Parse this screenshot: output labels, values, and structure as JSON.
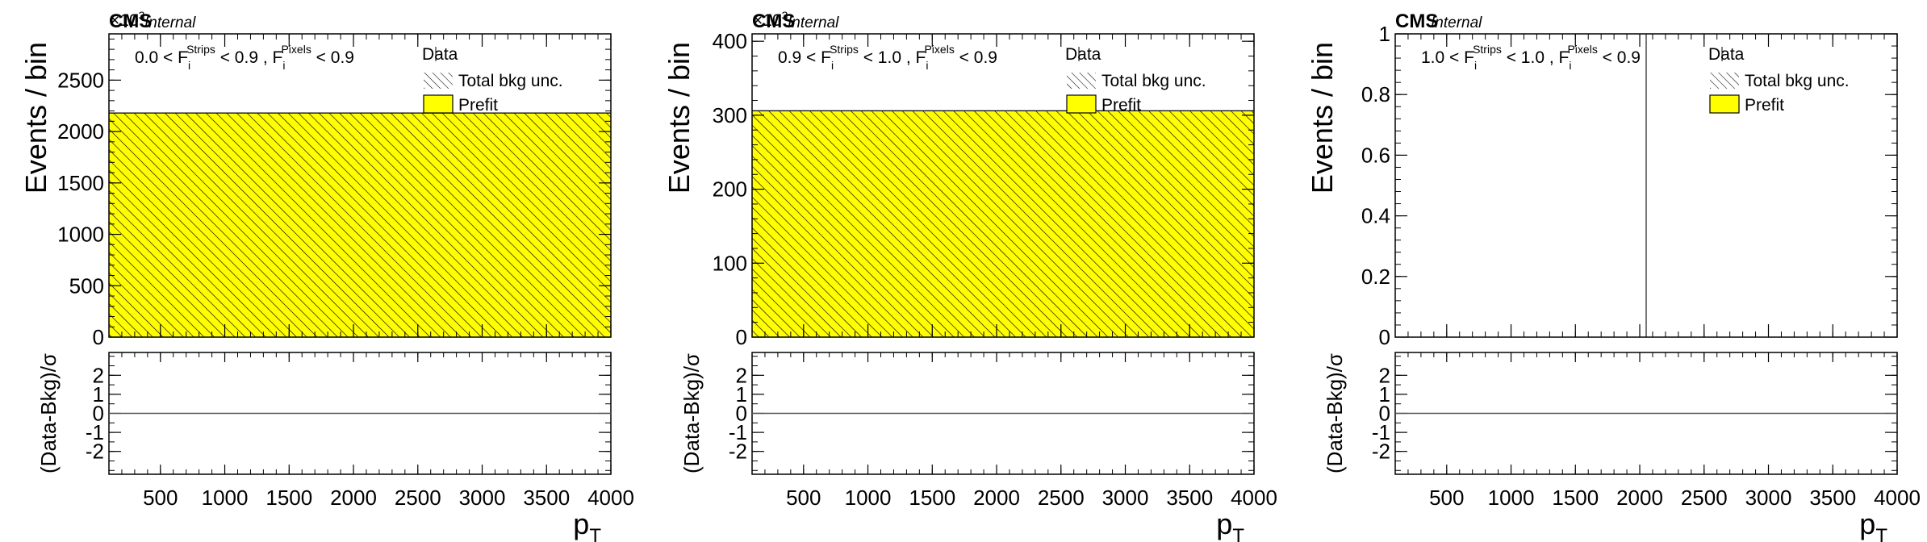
{
  "colors": {
    "prefit_fill": "#ffff00",
    "hatch": "#000000",
    "axis": "#000000",
    "data_line": "#777777"
  },
  "chart_data": [
    {
      "type": "histogram",
      "experiment": "CMS",
      "status": "Internal",
      "ylabel": "Events / bin",
      "ratio_ylabel": "(Data-Bkg)/σ",
      "xlabel": "p",
      "xlabel_sub": "T",
      "exponent_label": "×10",
      "exponent_power": "3",
      "region": {
        "a": "0.0 < F",
        "b": " < 0.9 , F",
        "c": " < 0.9",
        "sub1": "i",
        "sup1": "Strips",
        "sub2": "i",
        "sup2": "Pixels"
      },
      "legend": {
        "data": "Data",
        "unc": "Total bkg unc.",
        "prefit": "Prefit"
      },
      "xlim": [
        100,
        4000
      ],
      "ylim": [
        0,
        2950
      ],
      "ratio_ylim": [
        -3.2,
        3.2
      ],
      "xticks": [
        500,
        1000,
        1500,
        2000,
        2500,
        3000,
        3500,
        4000
      ],
      "yticks": [
        0,
        500,
        1000,
        1500,
        2000,
        2500
      ],
      "ratio_yticks": [
        2,
        1,
        0,
        -1,
        -2
      ],
      "bins": [
        {
          "low": 100,
          "high": 4000,
          "prefit": 2180
        }
      ],
      "data_line_x": null
    },
    {
      "type": "histogram",
      "experiment": "CMS",
      "status": "Internal",
      "ylabel": "Events / bin",
      "ratio_ylabel": "(Data-Bkg)/σ",
      "xlabel": "p",
      "xlabel_sub": "T",
      "exponent_label": "×10",
      "exponent_power": "3",
      "region": {
        "a": "0.9 < F",
        "b": " < 1.0 , F",
        "c": " < 0.9",
        "sub1": "i",
        "sup1": "Strips",
        "sub2": "i",
        "sup2": "Pixels"
      },
      "legend": {
        "data": "Data",
        "unc": "Total bkg unc.",
        "prefit": "Prefit"
      },
      "xlim": [
        100,
        4000
      ],
      "ylim": [
        0,
        410
      ],
      "ratio_ylim": [
        -3.2,
        3.2
      ],
      "xticks": [
        500,
        1000,
        1500,
        2000,
        2500,
        3000,
        3500,
        4000
      ],
      "yticks": [
        0,
        100,
        200,
        300,
        400
      ],
      "ratio_yticks": [
        2,
        1,
        0,
        -1,
        -2
      ],
      "bins": [
        {
          "low": 100,
          "high": 4000,
          "prefit": 306
        }
      ],
      "data_line_x": null
    },
    {
      "type": "histogram",
      "experiment": "CMS",
      "status": "Internal",
      "ylabel": "Events / bin",
      "ratio_ylabel": "(Data-Bkg)/σ",
      "xlabel": "p",
      "xlabel_sub": "T",
      "exponent_label": "",
      "exponent_power": "",
      "region": {
        "a": "1.0 < F",
        "b": " < 1.0 , F",
        "c": " < 0.9",
        "sub1": "i",
        "sup1": "Strips",
        "sub2": "i",
        "sup2": "Pixels"
      },
      "legend": {
        "data": "Data",
        "unc": "Total bkg unc.",
        "prefit": "Prefit"
      },
      "xlim": [
        100,
        4000
      ],
      "ylim": [
        0,
        1
      ],
      "ratio_ylim": [
        -3.2,
        3.2
      ],
      "xticks": [
        500,
        1000,
        1500,
        2000,
        2500,
        3000,
        3500,
        4000
      ],
      "yticks": [
        0,
        0.2,
        0.4,
        0.6,
        0.8,
        1
      ],
      "ratio_yticks": [
        2,
        1,
        0,
        -1,
        -2
      ],
      "bins": [],
      "data_line_x": 2050
    }
  ]
}
